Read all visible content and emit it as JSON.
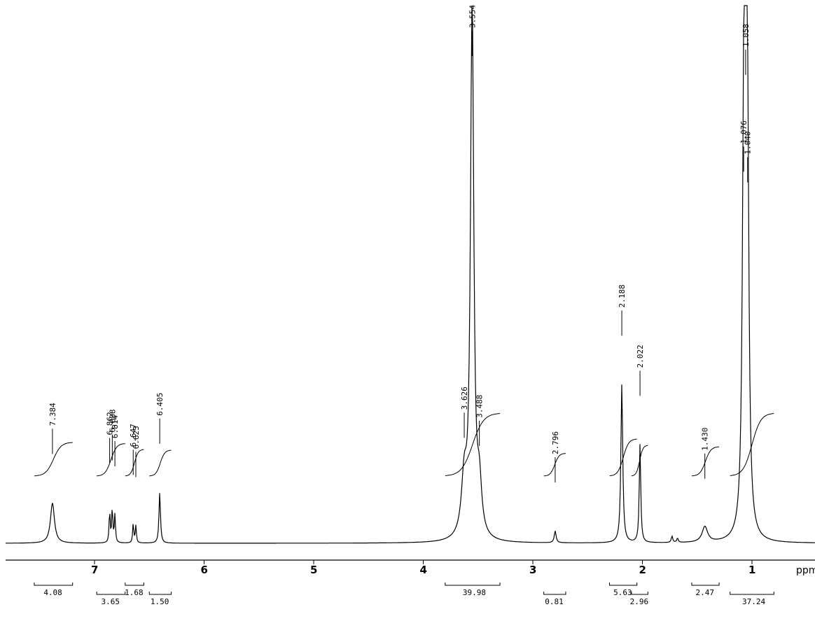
{
  "chart_data": {
    "type": "line",
    "title": "",
    "xlabel": "ppm",
    "ylabel": "",
    "x_reversed": true,
    "xlim": [
      7.85,
      -0.05
    ],
    "ylim": [
      0,
      100
    ],
    "grid": false,
    "axis_ticks": [
      "7",
      "6",
      "5",
      "4",
      "3",
      "2",
      "1"
    ],
    "peak_labels": [
      "7.384",
      "6.862",
      "6.838",
      "6.814",
      "6.647",
      "6.623",
      "6.405",
      "3.626",
      "3.554",
      "3.488",
      "2.796",
      "2.188",
      "2.022",
      "1.430",
      "1.076",
      "1.058",
      "1.040"
    ],
    "peaks": [
      {
        "ppm": 7.384,
        "height": 7.5,
        "width": 0.022
      },
      {
        "ppm": 6.862,
        "height": 5.8,
        "width": 0.006
      },
      {
        "ppm": 6.838,
        "height": 6.3,
        "width": 0.006
      },
      {
        "ppm": 6.814,
        "height": 5.2,
        "width": 0.006
      },
      {
        "ppm": 6.647,
        "height": 3.6,
        "width": 0.006
      },
      {
        "ppm": 6.623,
        "height": 3.2,
        "width": 0.006
      },
      {
        "ppm": 6.405,
        "height": 9.4,
        "width": 0.008
      },
      {
        "ppm": 3.626,
        "height": 10.5,
        "width": 0.03
      },
      {
        "ppm": 3.554,
        "height": 100,
        "width": 0.018
      },
      {
        "ppm": 3.488,
        "height": 9.0,
        "width": 0.025
      },
      {
        "ppm": 2.796,
        "height": 2.2,
        "width": 0.01
      },
      {
        "ppm": 2.188,
        "height": 29.5,
        "width": 0.01
      },
      {
        "ppm": 2.022,
        "height": 18.3,
        "width": 0.008
      },
      {
        "ppm": 1.73,
        "height": 1.2,
        "width": 0.008
      },
      {
        "ppm": 1.68,
        "height": 0.8,
        "width": 0.008
      },
      {
        "ppm": 1.43,
        "height": 2.9,
        "width": 0.03
      },
      {
        "ppm": 1.076,
        "height": 60,
        "width": 0.014
      },
      {
        "ppm": 1.058,
        "height": 78,
        "width": 0.014
      },
      {
        "ppm": 1.04,
        "height": 58,
        "width": 0.014
      }
    ],
    "integrals": [
      {
        "label": "4.08",
        "from": 7.55,
        "to": 7.2
      },
      {
        "label": "3.65",
        "from": 6.98,
        "to": 6.72
      },
      {
        "label": "1.68",
        "from": 6.72,
        "to": 6.55
      },
      {
        "label": "1.50",
        "from": 6.5,
        "to": 6.3
      },
      {
        "label": "39.98",
        "from": 3.8,
        "to": 3.3
      },
      {
        "label": "0.81",
        "from": 2.9,
        "to": 2.7
      },
      {
        "label": "5.63",
        "from": 2.3,
        "to": 2.05
      },
      {
        "label": "2.96",
        "from": 2.1,
        "to": 1.95
      },
      {
        "label": "2.47",
        "from": 1.55,
        "to": 1.3
      },
      {
        "label": "37.24",
        "from": 1.2,
        "to": 0.8
      }
    ]
  }
}
